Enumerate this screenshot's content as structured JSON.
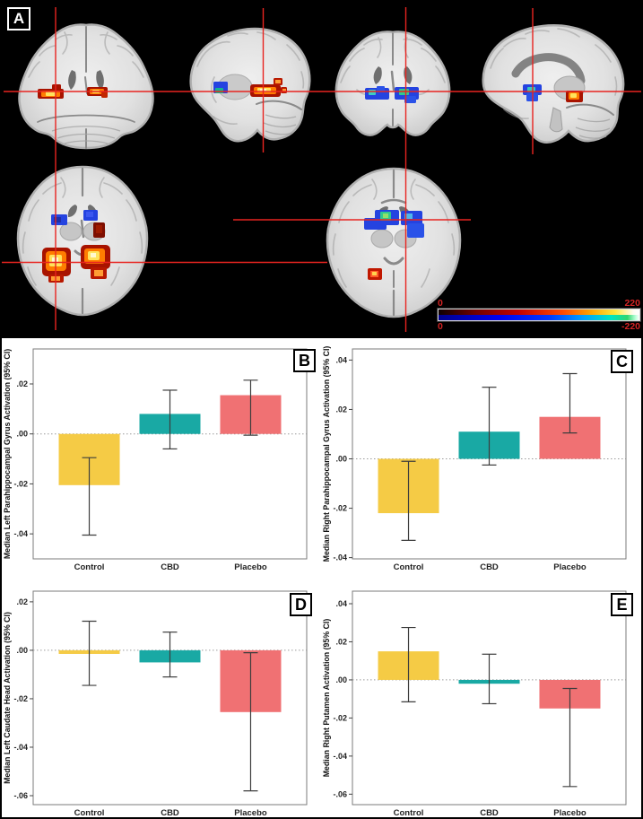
{
  "panel_a": {
    "label": "A",
    "slices": [
      "coronal-slice",
      "sagittal-slice",
      "coronal-slice",
      "sagittal-slice",
      "axial-slice",
      "axial-slice"
    ],
    "colorbar": {
      "pos_left_label": "0",
      "pos_right_label": "220",
      "neg_left_label": "0",
      "neg_right_label": "-220",
      "label_color": "#d32424",
      "pos_stops": [
        "#0d0000 0%",
        "#6e0000 18%",
        "#c40000 40%",
        "#ff4a00 62%",
        "#ffa600 76%",
        "#ffe93c 88%",
        "#fdfdf2 97%",
        "#ffffff 100%"
      ],
      "neg_stops": [
        "#00008c 0%",
        "#0000f0 30%",
        "#0038ff 55%",
        "#00a0ff 72%",
        "#00e6c2 86%",
        "#2ed66e 94%",
        "#b8ffd8 98%",
        "#ffffff 100%"
      ]
    }
  },
  "colors": {
    "control_bar": "#F5CB45",
    "cbd_bar": "#19A9A4",
    "placebo_bar": "#F07173",
    "crosshair": "#e82420",
    "hot_edge": "#a81300",
    "hot_mid": "#ff7c00",
    "hot_core": "#ffe35c",
    "cool_edge": "#2443e0",
    "cool_core": "#2fc98f",
    "error_bar": "#3d3d3d",
    "panel_background": "#000000"
  },
  "chart_data": [
    {
      "type": "bar",
      "panel_label": "B",
      "ylabel": "Median Left Parahippocampal Gyrus Activation (95% CI)",
      "xlabel": "",
      "categories": [
        "Control",
        "CBD",
        "Placebo"
      ],
      "values": [
        -0.0205,
        0.008,
        0.0155
      ],
      "ci_low": [
        -0.0405,
        -0.006,
        -0.0005
      ],
      "ci_high": [
        -0.0095,
        0.0175,
        0.0215
      ],
      "yticks": [
        0.02,
        0,
        -0.02,
        -0.04
      ],
      "ytick_labels": [
        ".02",
        ".00",
        "-.02",
        "-.04"
      ],
      "ylim": [
        -0.05,
        0.034
      ],
      "bar_colors": [
        "#F5CB45",
        "#19A9A4",
        "#F07173"
      ],
      "grid": false,
      "zero_line": "dotted"
    },
    {
      "type": "bar",
      "panel_label": "C",
      "ylabel": "Median Right Parahippocampal Gyrus Activation (95% CI)",
      "xlabel": "",
      "categories": [
        "Control",
        "CBD",
        "Placebo"
      ],
      "values": [
        -0.022,
        0.011,
        0.017
      ],
      "ci_low": [
        -0.033,
        -0.0025,
        0.0105
      ],
      "ci_high": [
        -0.001,
        0.029,
        0.0345
      ],
      "yticks": [
        0.04,
        0.02,
        0,
        -0.02,
        -0.04
      ],
      "ytick_labels": [
        ".04",
        ".02",
        ".00",
        "-.02",
        "-.04"
      ],
      "ylim": [
        -0.0405,
        0.0445
      ],
      "bar_colors": [
        "#F5CB45",
        "#19A9A4",
        "#F07173"
      ],
      "grid": false,
      "zero_line": "dotted"
    },
    {
      "type": "bar",
      "panel_label": "D",
      "ylabel": "Median Left Caudate Head Activation (95% CI)",
      "xlabel": "",
      "categories": [
        "Control",
        "CBD",
        "Placebo"
      ],
      "values": [
        -0.0015,
        -0.005,
        -0.0255
      ],
      "ci_low": [
        -0.0145,
        -0.011,
        -0.058
      ],
      "ci_high": [
        0.012,
        0.0075,
        -0.001
      ],
      "yticks": [
        0.02,
        0,
        -0.02,
        -0.04,
        -0.06
      ],
      "ytick_labels": [
        ".02",
        ".00",
        "-.02",
        "-.04",
        "-.06"
      ],
      "ylim": [
        -0.0637,
        0.0244
      ],
      "bar_colors": [
        "#F5CB45",
        "#19A9A4",
        "#F07173"
      ],
      "grid": false,
      "zero_line": "dotted"
    },
    {
      "type": "bar",
      "panel_label": "E",
      "ylabel": "Median Right Putamen Activation (95% CI)",
      "xlabel": "",
      "categories": [
        "Control",
        "CBD",
        "Placebo"
      ],
      "values": [
        0.015,
        -0.002,
        -0.015
      ],
      "ci_low": [
        -0.0115,
        -0.0125,
        -0.056
      ],
      "ci_high": [
        0.0275,
        0.0135,
        -0.0045
      ],
      "yticks": [
        0.04,
        0.02,
        0,
        -0.02,
        -0.04,
        -0.06
      ],
      "ytick_labels": [
        ".04",
        ".02",
        ".00",
        "-.02",
        "-.04",
        "-.06"
      ],
      "ylim": [
        -0.0655,
        0.0466
      ],
      "bar_colors": [
        "#F5CB45",
        "#19A9A4",
        "#F07173"
      ],
      "grid": false,
      "zero_line": "dotted"
    }
  ]
}
